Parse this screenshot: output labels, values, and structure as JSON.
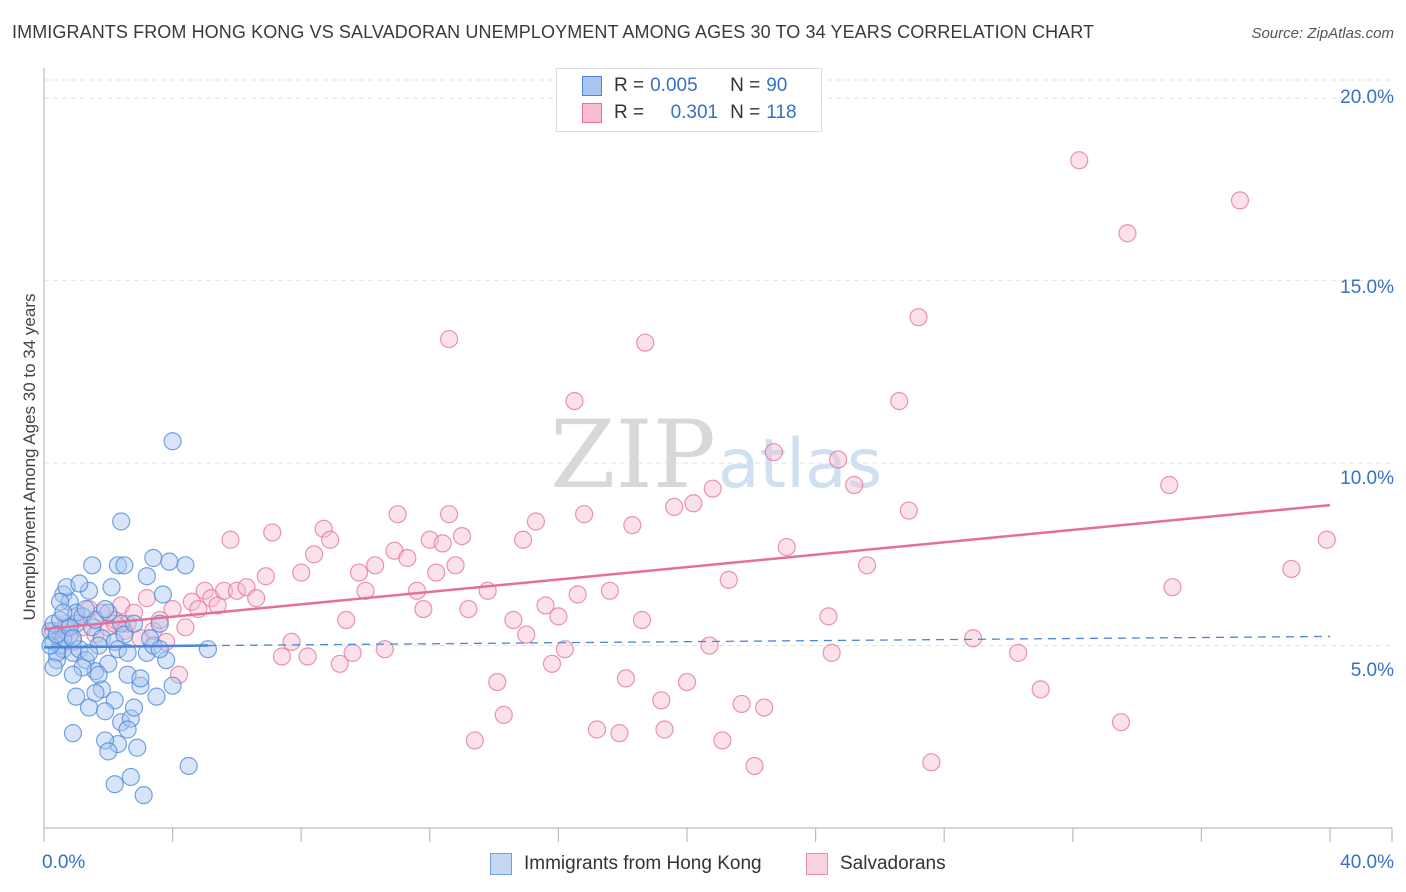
{
  "title": "IMMIGRANTS FROM HONG KONG VS SALVADORAN UNEMPLOYMENT AMONG AGES 30 TO 34 YEARS CORRELATION CHART",
  "source": "Source: ZipAtlas.com",
  "watermark": {
    "zip": "ZIP",
    "atlas": "atlas"
  },
  "legend": {
    "blue": {
      "r_label": "R = ",
      "r_value": "0.005",
      "n_label": "N = ",
      "n_value": "90"
    },
    "pink": {
      "r_label": "R = ",
      "r_value": "0.301",
      "n_label": "N = ",
      "n_value": "118"
    }
  },
  "colors": {
    "blue": "#4a86d8",
    "blue_fill": "#a9c6f0",
    "pink": "#e4709a",
    "pink_fill": "#f6bed0",
    "axis_text": "#3670c8",
    "grid": "#e3e3e3"
  },
  "chart_data": {
    "type": "scatter",
    "title": "IMMIGRANTS FROM HONG KONG VS SALVADORAN UNEMPLOYMENT AMONG AGES 30 TO 34 YEARS CORRELATION CHART",
    "xlabel": "",
    "ylabel": "Unemployment Among Ages 30 to 34 years",
    "xlim": [
      0,
      40
    ],
    "ylim": [
      0,
      20.5
    ],
    "x_tick_labels": [
      "0.0%",
      "40.0%"
    ],
    "y_ticks": [
      5,
      10,
      15,
      20
    ],
    "y_tick_labels": [
      "5.0%",
      "10.0%",
      "15.0%",
      "20.0%"
    ],
    "series": [
      {
        "name": "Immigrants from Hong Kong",
        "color": "blue",
        "r": 0.005,
        "n": 90,
        "trend": {
          "x": [
            0,
            5.1
          ],
          "y": [
            4.95,
            5.0
          ],
          "dashed_extension": {
            "x": [
              5.1,
              40
            ],
            "y": [
              5.0,
              5.25
            ]
          }
        },
        "points": [
          [
            0.2,
            5.4
          ],
          [
            0.3,
            5.1
          ],
          [
            0.4,
            4.6
          ],
          [
            0.5,
            5.0
          ],
          [
            0.6,
            4.9
          ],
          [
            0.7,
            5.5
          ],
          [
            0.8,
            5.3
          ],
          [
            0.3,
            5.6
          ],
          [
            0.5,
            5.7
          ],
          [
            0.6,
            5.2
          ],
          [
            0.9,
            4.8
          ],
          [
            1.0,
            5.6
          ],
          [
            1.1,
            4.9
          ],
          [
            0.4,
            4.8
          ],
          [
            0.2,
            5.0
          ],
          [
            0.6,
            6.4
          ],
          [
            0.8,
            6.2
          ],
          [
            1.0,
            5.9
          ],
          [
            1.2,
            5.8
          ],
          [
            0.7,
            6.6
          ],
          [
            1.5,
            5.5
          ],
          [
            1.6,
            5.7
          ],
          [
            1.8,
            5.2
          ],
          [
            2.0,
            5.9
          ],
          [
            2.2,
            5.1
          ],
          [
            2.4,
            5.6
          ],
          [
            2.5,
            5.3
          ],
          [
            1.4,
            6.5
          ],
          [
            1.9,
            6.0
          ],
          [
            2.1,
            6.6
          ],
          [
            2.3,
            7.2
          ],
          [
            1.3,
            4.6
          ],
          [
            1.6,
            4.3
          ],
          [
            1.8,
            3.8
          ],
          [
            2.0,
            4.5
          ],
          [
            2.2,
            3.5
          ],
          [
            1.2,
            4.4
          ],
          [
            1.0,
            3.6
          ],
          [
            0.9,
            4.2
          ],
          [
            1.4,
            3.3
          ],
          [
            1.6,
            3.7
          ],
          [
            1.9,
            3.2
          ],
          [
            2.4,
            2.9
          ],
          [
            2.6,
            4.2
          ],
          [
            2.7,
            3.0
          ],
          [
            2.3,
            2.3
          ],
          [
            2.6,
            2.7
          ],
          [
            2.8,
            3.3
          ],
          [
            2.9,
            2.2
          ],
          [
            2.7,
            1.4
          ],
          [
            2.2,
            1.2
          ],
          [
            3.1,
            0.9
          ],
          [
            3.0,
            3.9
          ],
          [
            3.2,
            4.8
          ],
          [
            3.4,
            5.0
          ],
          [
            3.6,
            5.6
          ],
          [
            3.8,
            4.6
          ],
          [
            4.0,
            3.9
          ],
          [
            3.5,
            3.6
          ],
          [
            3.2,
            6.9
          ],
          [
            3.4,
            7.4
          ],
          [
            3.9,
            7.3
          ],
          [
            4.4,
            7.2
          ],
          [
            4.0,
            10.6
          ],
          [
            4.5,
            1.7
          ],
          [
            5.1,
            4.9
          ],
          [
            2.4,
            8.4
          ],
          [
            2.5,
            7.2
          ],
          [
            1.5,
            7.2
          ],
          [
            0.5,
            6.2
          ],
          [
            0.3,
            4.4
          ],
          [
            0.9,
            2.6
          ],
          [
            1.7,
            4.2
          ],
          [
            1.9,
            2.4
          ],
          [
            2.3,
            4.9
          ],
          [
            0.4,
            5.3
          ],
          [
            0.8,
            5.5
          ],
          [
            1.3,
            6.0
          ],
          [
            1.7,
            5.0
          ],
          [
            2.0,
            2.1
          ],
          [
            2.8,
            5.6
          ],
          [
            3.0,
            4.1
          ],
          [
            3.3,
            5.2
          ],
          [
            3.6,
            4.9
          ],
          [
            1.1,
            6.7
          ],
          [
            0.6,
            5.9
          ],
          [
            1.4,
            4.8
          ],
          [
            2.6,
            4.8
          ],
          [
            3.7,
            6.4
          ],
          [
            0.9,
            5.2
          ]
        ]
      },
      {
        "name": "Salvadorans",
        "color": "pink",
        "r": 0.301,
        "n": 118,
        "trend": {
          "x": [
            0,
            40
          ],
          "y": [
            5.45,
            8.85
          ]
        },
        "points": [
          [
            0.3,
            5.4
          ],
          [
            0.5,
            5.2
          ],
          [
            0.7,
            5.6
          ],
          [
            0.9,
            5.1
          ],
          [
            1.0,
            5.8
          ],
          [
            1.2,
            5.5
          ],
          [
            1.4,
            6.0
          ],
          [
            1.6,
            5.3
          ],
          [
            1.8,
            5.9
          ],
          [
            2.0,
            5.5
          ],
          [
            2.2,
            5.7
          ],
          [
            2.4,
            6.1
          ],
          [
            2.6,
            5.6
          ],
          [
            2.8,
            5.9
          ],
          [
            3.0,
            5.2
          ],
          [
            3.2,
            6.3
          ],
          [
            3.4,
            5.4
          ],
          [
            3.6,
            5.7
          ],
          [
            3.8,
            5.1
          ],
          [
            4.0,
            6.0
          ],
          [
            4.2,
            4.2
          ],
          [
            4.4,
            5.5
          ],
          [
            4.6,
            6.2
          ],
          [
            4.8,
            6.0
          ],
          [
            5.0,
            6.5
          ],
          [
            5.2,
            6.3
          ],
          [
            5.4,
            6.1
          ],
          [
            5.6,
            6.5
          ],
          [
            5.8,
            7.9
          ],
          [
            6.0,
            6.5
          ],
          [
            6.3,
            6.6
          ],
          [
            6.6,
            6.3
          ],
          [
            6.9,
            6.9
          ],
          [
            7.1,
            8.1
          ],
          [
            7.4,
            4.7
          ],
          [
            7.7,
            5.1
          ],
          [
            8.0,
            7.0
          ],
          [
            8.2,
            4.7
          ],
          [
            8.4,
            7.5
          ],
          [
            8.7,
            8.2
          ],
          [
            8.9,
            7.9
          ],
          [
            9.2,
            4.5
          ],
          [
            9.4,
            5.7
          ],
          [
            9.6,
            4.8
          ],
          [
            9.8,
            7.0
          ],
          [
            10.0,
            6.5
          ],
          [
            10.3,
            7.2
          ],
          [
            10.6,
            4.9
          ],
          [
            10.9,
            7.6
          ],
          [
            11.0,
            8.6
          ],
          [
            11.3,
            7.4
          ],
          [
            11.6,
            6.5
          ],
          [
            11.8,
            6.0
          ],
          [
            12.0,
            7.9
          ],
          [
            12.2,
            7.0
          ],
          [
            12.4,
            7.8
          ],
          [
            12.6,
            8.6
          ],
          [
            12.8,
            7.2
          ],
          [
            13.0,
            8.0
          ],
          [
            13.2,
            6.0
          ],
          [
            13.4,
            2.4
          ],
          [
            13.8,
            6.5
          ],
          [
            14.1,
            4.0
          ],
          [
            14.3,
            3.1
          ],
          [
            14.6,
            5.7
          ],
          [
            14.9,
            7.9
          ],
          [
            15.0,
            5.3
          ],
          [
            15.3,
            8.4
          ],
          [
            15.6,
            6.1
          ],
          [
            15.8,
            4.5
          ],
          [
            16.0,
            5.8
          ],
          [
            16.2,
            4.9
          ],
          [
            16.5,
            11.7
          ],
          [
            16.6,
            6.4
          ],
          [
            16.8,
            8.6
          ],
          [
            17.2,
            2.7
          ],
          [
            17.6,
            6.5
          ],
          [
            17.9,
            2.6
          ],
          [
            18.1,
            4.1
          ],
          [
            18.3,
            8.3
          ],
          [
            18.6,
            5.7
          ],
          [
            18.7,
            13.3
          ],
          [
            19.2,
            3.5
          ],
          [
            19.3,
            2.7
          ],
          [
            19.6,
            8.8
          ],
          [
            20.0,
            4.0
          ],
          [
            20.2,
            8.9
          ],
          [
            20.7,
            5.0
          ],
          [
            20.8,
            9.3
          ],
          [
            21.1,
            2.4
          ],
          [
            21.3,
            6.8
          ],
          [
            21.7,
            3.4
          ],
          [
            22.1,
            1.7
          ],
          [
            22.4,
            3.3
          ],
          [
            22.7,
            10.3
          ],
          [
            23.1,
            7.7
          ],
          [
            24.4,
            5.8
          ],
          [
            24.5,
            4.8
          ],
          [
            24.7,
            10.1
          ],
          [
            25.2,
            9.4
          ],
          [
            25.6,
            7.2
          ],
          [
            26.6,
            11.7
          ],
          [
            26.9,
            8.7
          ],
          [
            27.2,
            14.0
          ],
          [
            27.6,
            1.8
          ],
          [
            28.9,
            5.2
          ],
          [
            30.3,
            4.8
          ],
          [
            31.0,
            3.8
          ],
          [
            32.2,
            18.3
          ],
          [
            33.5,
            2.9
          ],
          [
            33.7,
            16.3
          ],
          [
            35.0,
            9.4
          ],
          [
            35.1,
            6.6
          ],
          [
            37.2,
            17.2
          ],
          [
            38.8,
            7.1
          ],
          [
            39.9,
            7.9
          ],
          [
            12.6,
            13.4
          ],
          [
            2.2,
            5.6
          ],
          [
            2.5,
            5.4
          ]
        ]
      }
    ]
  },
  "bottom_legend": {
    "blue_label": "Immigrants from Hong Kong",
    "pink_label": "Salvadorans"
  }
}
